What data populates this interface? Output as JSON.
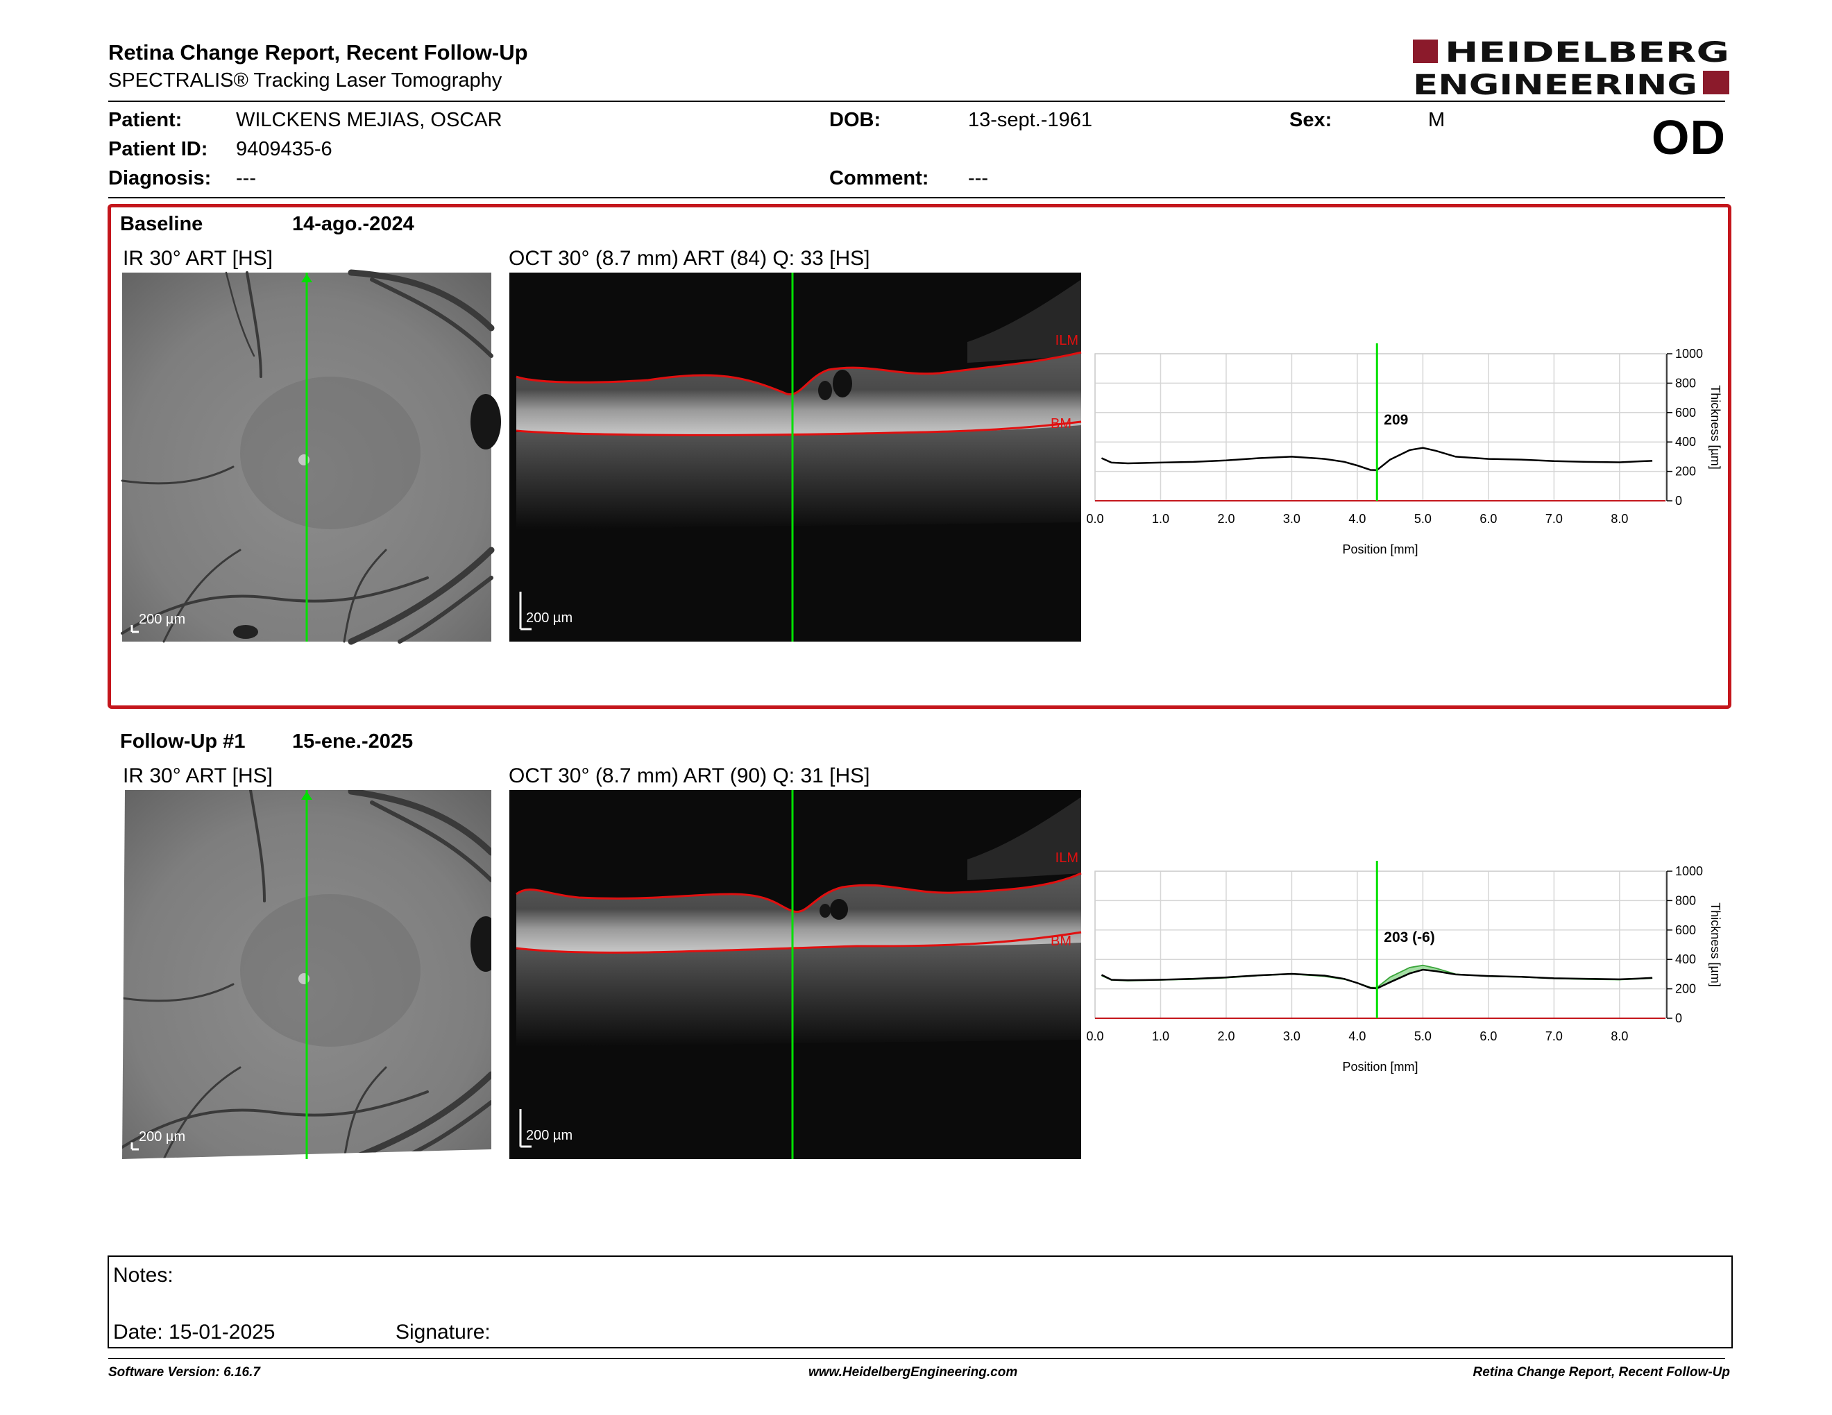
{
  "header": {
    "title": "Retina Change Report, Recent Follow-Up",
    "subtitle": "SPECTRALIS® Tracking Laser Tomography",
    "logo_line1": "HEIDELBERG",
    "logo_line2": "ENGINEERING",
    "eye": "OD"
  },
  "patient": {
    "patient_label": "Patient:",
    "patient_value": "WILCKENS MEJIAS, OSCAR",
    "id_label": "Patient ID:",
    "id_value": "9409435-6",
    "diagnosis_label": "Diagnosis:",
    "diagnosis_value": "---",
    "dob_label": "DOB:",
    "dob_value": "13-sept.-1961",
    "comment_label": "Comment:",
    "comment_value": "---",
    "sex_label": "Sex:",
    "sex_value": "M"
  },
  "baseline": {
    "label": "Baseline",
    "date": "14-ago.-2024",
    "ir_caption": "IR 30° ART [HS]",
    "oct_caption": "OCT 30° (8.7 mm) ART (84) Q: 33 [HS]",
    "ir_scale": "200 µm",
    "oct_scale": "200 µm",
    "ilm_label": "ILM",
    "bm_label": "BM"
  },
  "followup": {
    "label": "Follow-Up #1",
    "date": "15-ene.-2025",
    "ir_caption": "IR 30° ART [HS]",
    "oct_caption": "OCT 30° (8.7 mm) ART (90) Q: 31 [HS]",
    "ir_scale": "200 µm",
    "oct_scale": "200 µm",
    "ilm_label": "ILM",
    "bm_label": "BM"
  },
  "chart_data": [
    {
      "type": "line",
      "title": "",
      "xlabel": "Position [mm]",
      "ylabel": "Thickness [µm]",
      "xlim": [
        0.0,
        8.7
      ],
      "ylim": [
        0,
        1000
      ],
      "x_ticks": [
        "0.0",
        "1.0",
        "2.0",
        "3.0",
        "4.0",
        "5.0",
        "6.0",
        "7.0",
        "8.0"
      ],
      "y_ticks": [
        "0",
        "200",
        "400",
        "600",
        "800",
        "1000"
      ],
      "grid": true,
      "cursor_x": 4.3,
      "cursor_label": "209",
      "series": [
        {
          "color": "#000000",
          "x": [
            0.1,
            0.25,
            0.5,
            1.0,
            1.5,
            2.0,
            2.5,
            3.0,
            3.5,
            3.8,
            4.0,
            4.2,
            4.3,
            4.5,
            4.8,
            5.0,
            5.2,
            5.5,
            6.0,
            6.5,
            7.0,
            7.5,
            8.0,
            8.3,
            8.5
          ],
          "y": [
            290,
            260,
            255,
            260,
            265,
            275,
            290,
            300,
            285,
            265,
            240,
            210,
            209,
            280,
            345,
            360,
            340,
            300,
            285,
            280,
            270,
            265,
            262,
            268,
            272
          ]
        }
      ]
    },
    {
      "type": "line",
      "title": "",
      "xlabel": "Position [mm]",
      "ylabel": "Thickness [µm]",
      "xlim": [
        0.0,
        8.7
      ],
      "ylim": [
        0,
        1000
      ],
      "x_ticks": [
        "0.0",
        "1.0",
        "2.0",
        "3.0",
        "4.0",
        "5.0",
        "6.0",
        "7.0",
        "8.0"
      ],
      "y_ticks": [
        "0",
        "200",
        "400",
        "600",
        "800",
        "1000"
      ],
      "grid": true,
      "cursor_x": 4.3,
      "cursor_label": "203 (-6)",
      "series": [
        {
          "color": "#3aa53a",
          "x": [
            0.1,
            0.25,
            0.5,
            1.0,
            1.5,
            2.0,
            2.5,
            3.0,
            3.5,
            3.8,
            4.0,
            4.2,
            4.3,
            4.5,
            4.8,
            5.0,
            5.2,
            5.5,
            6.0,
            6.5,
            7.0,
            7.5,
            8.0,
            8.3,
            8.5
          ],
          "y": [
            290,
            260,
            255,
            260,
            265,
            275,
            290,
            300,
            285,
            265,
            240,
            210,
            209,
            280,
            345,
            360,
            340,
            300,
            285,
            280,
            270,
            265,
            262,
            268,
            272
          ]
        },
        {
          "color": "#000000",
          "x": [
            0.1,
            0.25,
            0.5,
            1.0,
            1.5,
            2.0,
            2.5,
            3.0,
            3.5,
            3.8,
            4.0,
            4.2,
            4.3,
            4.5,
            4.8,
            5.0,
            5.2,
            5.5,
            6.0,
            6.5,
            7.0,
            7.5,
            8.0,
            8.3,
            8.5
          ],
          "y": [
            295,
            262,
            258,
            262,
            268,
            278,
            292,
            302,
            290,
            268,
            240,
            206,
            203,
            245,
            305,
            330,
            320,
            298,
            287,
            282,
            272,
            268,
            265,
            270,
            275
          ]
        }
      ]
    }
  ],
  "notes": {
    "notes_label": "Notes:",
    "date_label": "Date: 15-01-2025",
    "signature_label": "Signature:"
  },
  "footer": {
    "software": "Software Version: 6.16.7",
    "website": "www.HeidelbergEngineering.com",
    "report_name": "Retina Change Report, Recent Follow-Up"
  },
  "colors": {
    "accent_red": "#c4161c",
    "cursor_green": "#00e000",
    "segmentation_red": "#e01010"
  }
}
